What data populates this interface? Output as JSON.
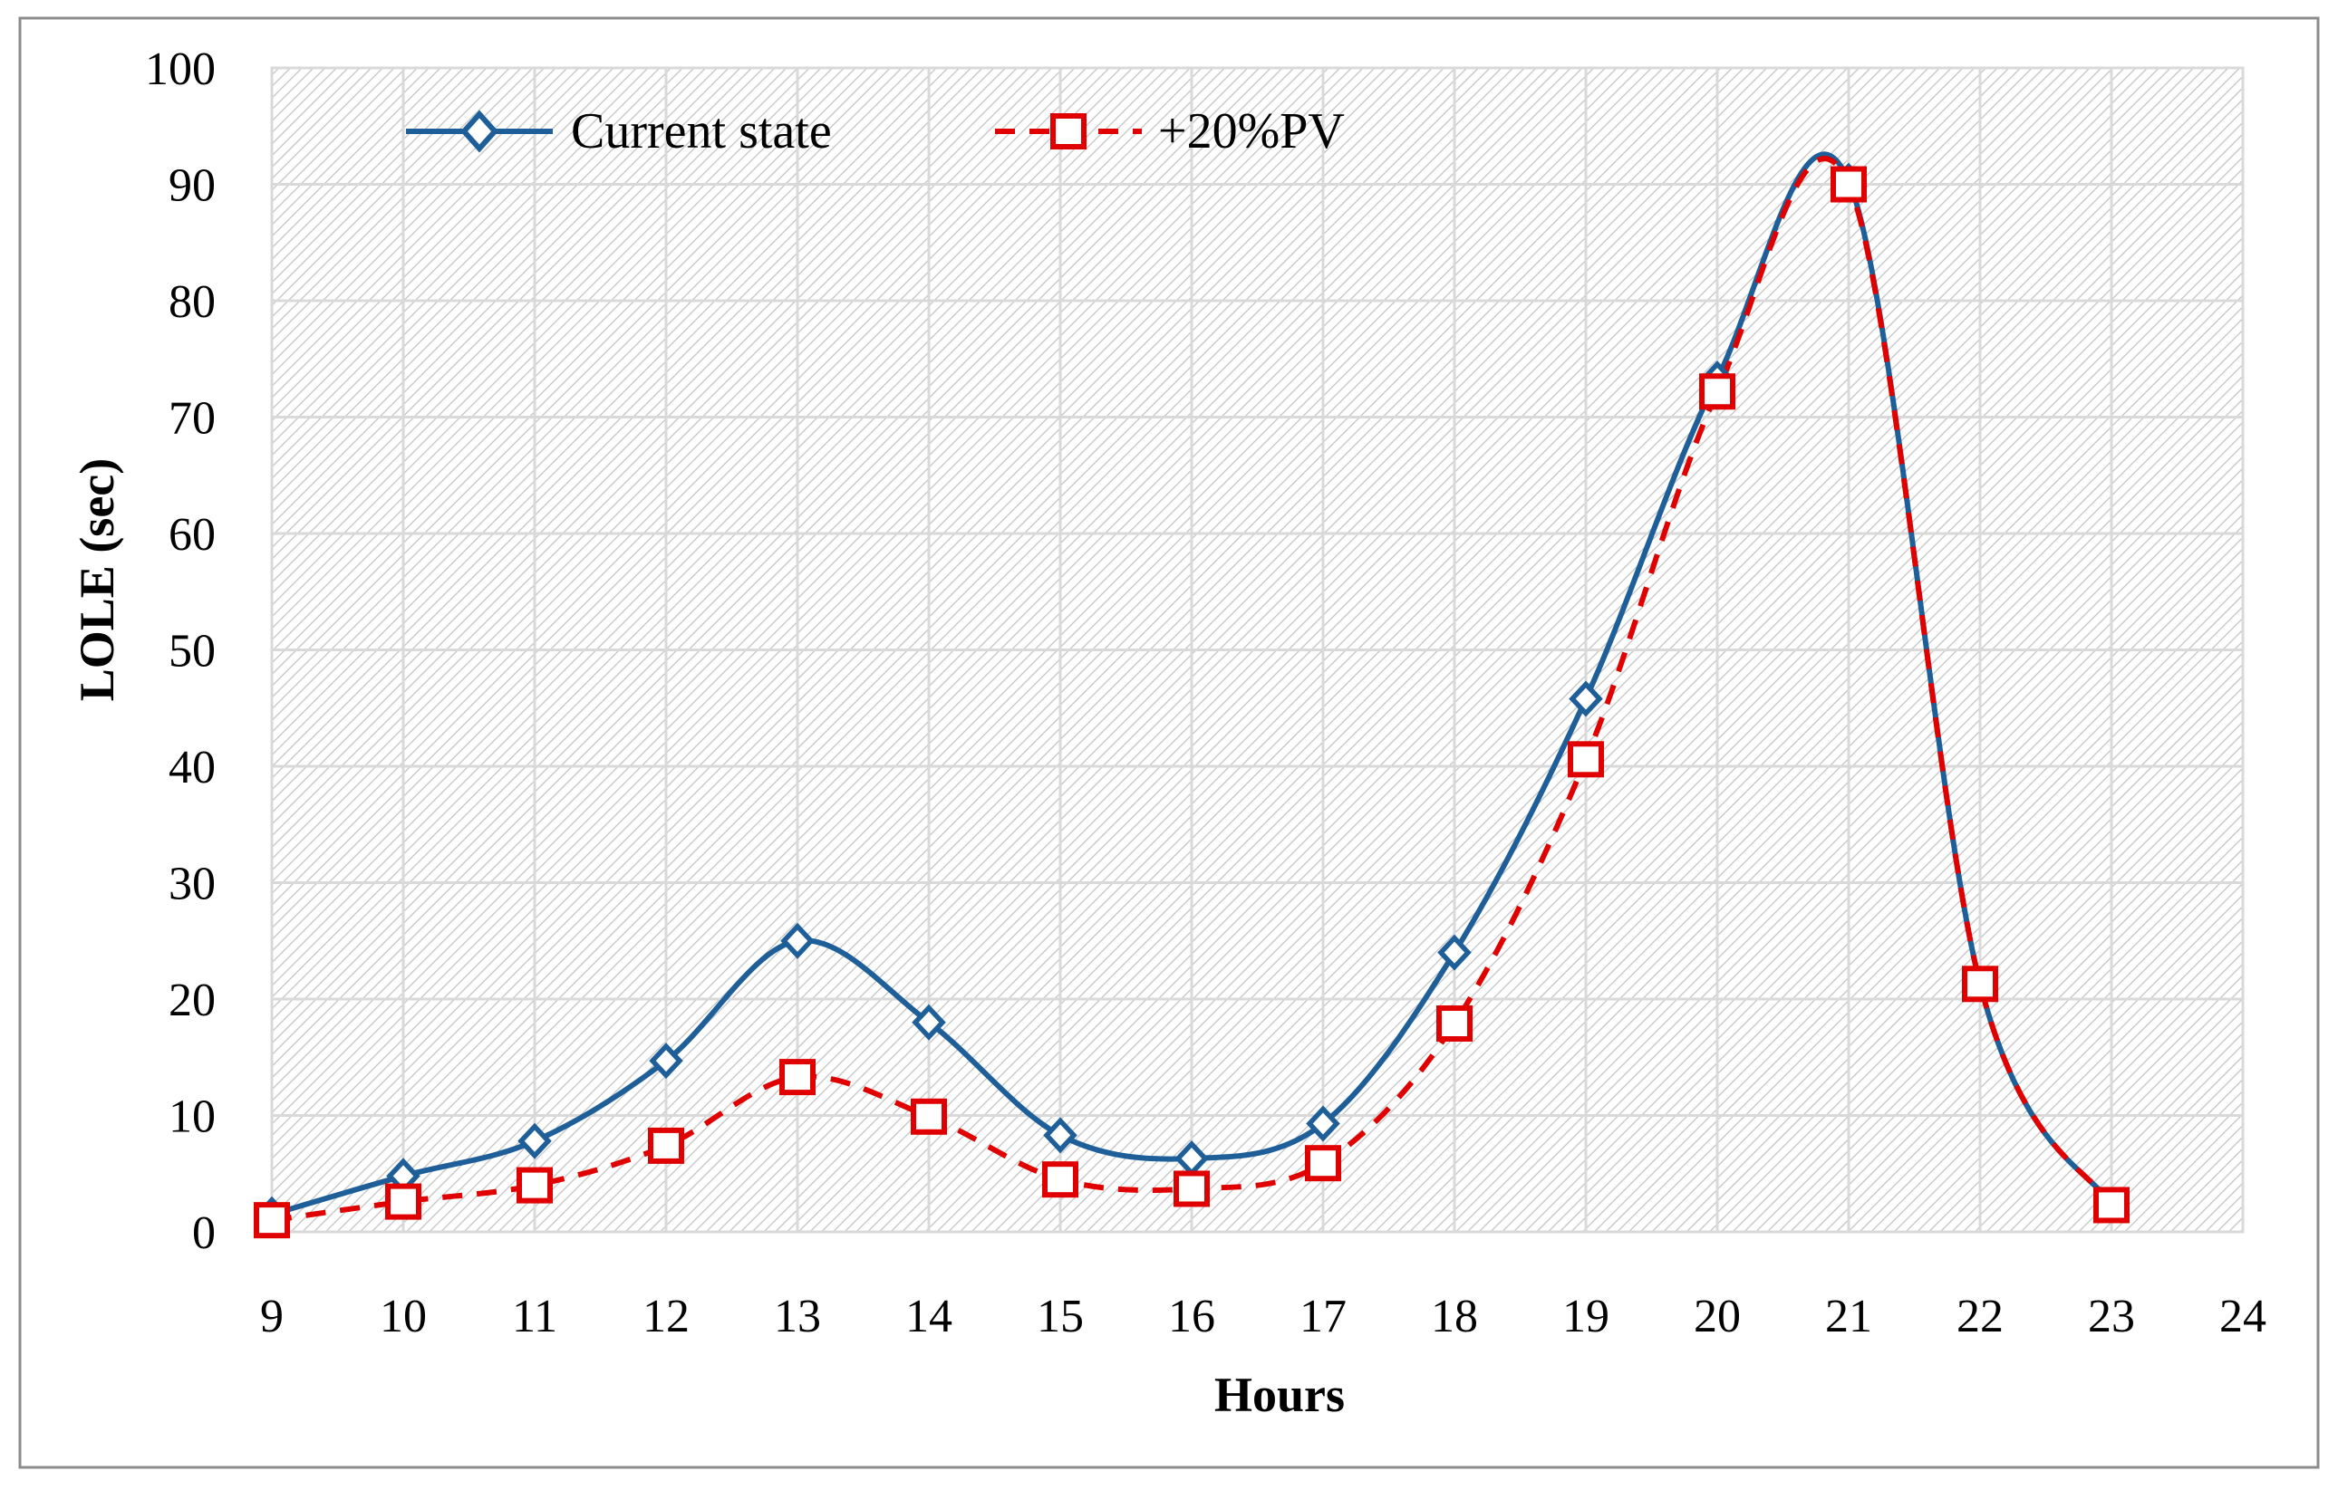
{
  "chart_data": {
    "type": "line",
    "title": "",
    "xlabel": "Hours",
    "ylabel": "LOLE (sec)",
    "x": [
      9,
      10,
      11,
      12,
      13,
      14,
      15,
      16,
      17,
      18,
      19,
      20,
      21,
      22,
      23
    ],
    "xticks": [
      "9",
      "10",
      "11",
      "12",
      "13",
      "14",
      "15",
      "16",
      "17",
      "18",
      "19",
      "20",
      "21",
      "22",
      "23",
      "24"
    ],
    "xlim": [
      9,
      24
    ],
    "ylim": [
      0,
      100
    ],
    "yticks": [
      "0",
      "10",
      "20",
      "30",
      "40",
      "50",
      "60",
      "70",
      "80",
      "90",
      "100"
    ],
    "grid": true,
    "legend_position": "top-left",
    "series": [
      {
        "name": "Current state",
        "values": [
          1.5,
          4.8,
          7.8,
          14.7,
          25.0,
          18.0,
          8.3,
          6.3,
          9.3,
          24.0,
          45.8,
          73.3,
          90.3,
          21.3,
          2.3
        ],
        "color": "#1f5f99",
        "marker": "diamond",
        "line_style": "solid"
      },
      {
        "name": "+20%PV",
        "values": [
          1.0,
          2.6,
          4.0,
          7.4,
          13.3,
          9.9,
          4.5,
          3.7,
          5.9,
          17.9,
          40.6,
          72.2,
          90.0,
          21.3,
          2.3
        ],
        "color": "#e00000",
        "marker": "square",
        "line_style": "dashed"
      }
    ]
  }
}
